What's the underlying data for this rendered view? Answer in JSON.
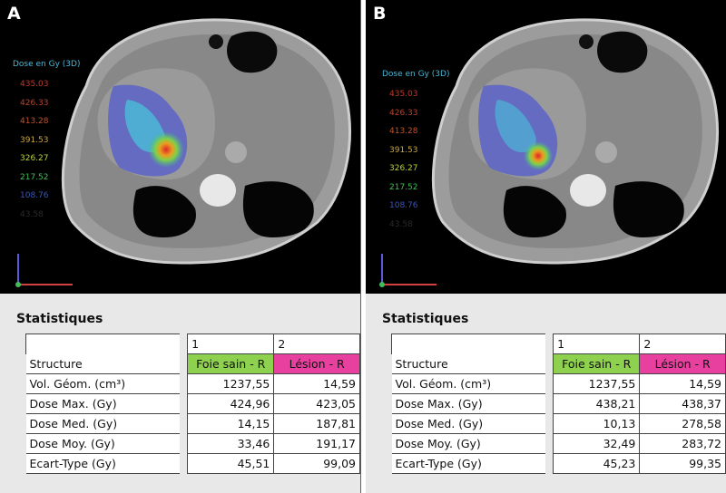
{
  "panels": [
    {
      "label": "A",
      "legend_title": "Dose en Gy (3D)",
      "legend_levels": [
        {
          "value": "435.03",
          "color": "#c0392b"
        },
        {
          "value": "426.33",
          "color": "#b9442f"
        },
        {
          "value": "413.28",
          "color": "#c0532b"
        },
        {
          "value": "391.53",
          "color": "#c9a640"
        },
        {
          "value": "326.27",
          "color": "#b8d23c"
        },
        {
          "value": "217.52",
          "color": "#3fbf5a"
        },
        {
          "value": "108.76",
          "color": "#3b57b8"
        },
        {
          "value": "43.58",
          "color": "#2a2a2a"
        }
      ],
      "stats_title": "Statistiques",
      "col_ids": [
        "1",
        "2"
      ],
      "col_names": [
        "Foie sain - R",
        "Lésion - R"
      ],
      "structure_label": "Structure",
      "rows": [
        {
          "label": "Vol. Géom. (cm³)",
          "v1": "1237,55",
          "v2": "14,59"
        },
        {
          "label": "Dose Max. (Gy)",
          "v1": "424,96",
          "v2": "423,05"
        },
        {
          "label": "Dose Med. (Gy)",
          "v1": "14,15",
          "v2": "187,81"
        },
        {
          "label": "Dose Moy. (Gy)",
          "v1": "33,46",
          "v2": "191,17"
        },
        {
          "label": "Ecart-Type (Gy)",
          "v1": "45,51",
          "v2": "99,09"
        }
      ]
    },
    {
      "label": "B",
      "legend_title": "Dose en Gy (3D)",
      "legend_levels": [
        {
          "value": "435.03",
          "color": "#c0392b"
        },
        {
          "value": "426.33",
          "color": "#b9442f"
        },
        {
          "value": "413.28",
          "color": "#c0532b"
        },
        {
          "value": "391.53",
          "color": "#c9a640"
        },
        {
          "value": "326.27",
          "color": "#b8d23c"
        },
        {
          "value": "217.52",
          "color": "#3fbf5a"
        },
        {
          "value": "108.76",
          "color": "#3b57b8"
        },
        {
          "value": "43.58",
          "color": "#2a2a2a"
        }
      ],
      "stats_title": "Statistiques",
      "col_ids": [
        "1",
        "2"
      ],
      "col_names": [
        "Foie sain - R",
        "Lésion - R"
      ],
      "structure_label": "Structure",
      "rows": [
        {
          "label": "Vol. Géom. (cm³)",
          "v1": "1237,55",
          "v2": "14,59"
        },
        {
          "label": "Dose Max. (Gy)",
          "v1": "438,21",
          "v2": "438,37"
        },
        {
          "label": "Dose Med. (Gy)",
          "v1": "10,13",
          "v2": "278,58"
        },
        {
          "label": "Dose Moy. (Gy)",
          "v1": "32,49",
          "v2": "283,72"
        },
        {
          "label": "Ecart-Type (Gy)",
          "v1": "45,23",
          "v2": "99,35"
        }
      ]
    }
  ]
}
